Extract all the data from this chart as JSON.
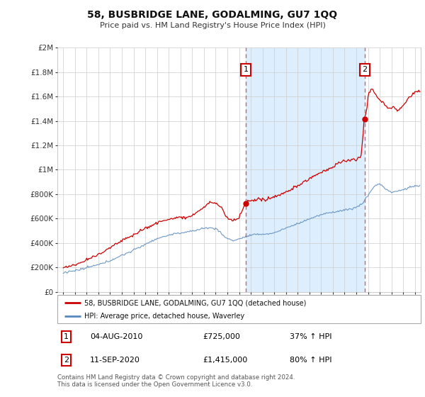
{
  "title": "58, BUSBRIDGE LANE, GODALMING, GU7 1QQ",
  "subtitle": "Price paid vs. HM Land Registry's House Price Index (HPI)",
  "legend_label_red": "58, BUSBRIDGE LANE, GODALMING, GU7 1QQ (detached house)",
  "legend_label_blue": "HPI: Average price, detached house, Waverley",
  "annotation1_label": "1",
  "annotation1_date": "04-AUG-2010",
  "annotation1_price": "£725,000",
  "annotation1_hpi": "37% ↑ HPI",
  "annotation2_label": "2",
  "annotation2_date": "11-SEP-2020",
  "annotation2_price": "£1,415,000",
  "annotation2_hpi": "80% ↑ HPI",
  "footer": "Contains HM Land Registry data © Crown copyright and database right 2024.\nThis data is licensed under the Open Government Licence v3.0.",
  "red_color": "#cc0000",
  "blue_color": "#5588bb",
  "shade_color": "#ddeeff",
  "vline_color": "#cc6666",
  "grid_color": "#cccccc",
  "ylim": [
    0,
    2000000
  ],
  "yticks": [
    0,
    200000,
    400000,
    600000,
    800000,
    1000000,
    1200000,
    1400000,
    1600000,
    1800000,
    2000000
  ],
  "ytick_labels": [
    "£0",
    "£200K",
    "£400K",
    "£600K",
    "£800K",
    "£1M",
    "£1.2M",
    "£1.4M",
    "£1.6M",
    "£1.8M",
    "£2M"
  ],
  "vline1_x": 2010.583,
  "vline2_x": 2020.708,
  "sale1_x": 2010.583,
  "sale1_y": 725000,
  "sale2_x": 2020.708,
  "sale2_y": 1415000,
  "xlim": [
    1994.5,
    2025.5
  ]
}
